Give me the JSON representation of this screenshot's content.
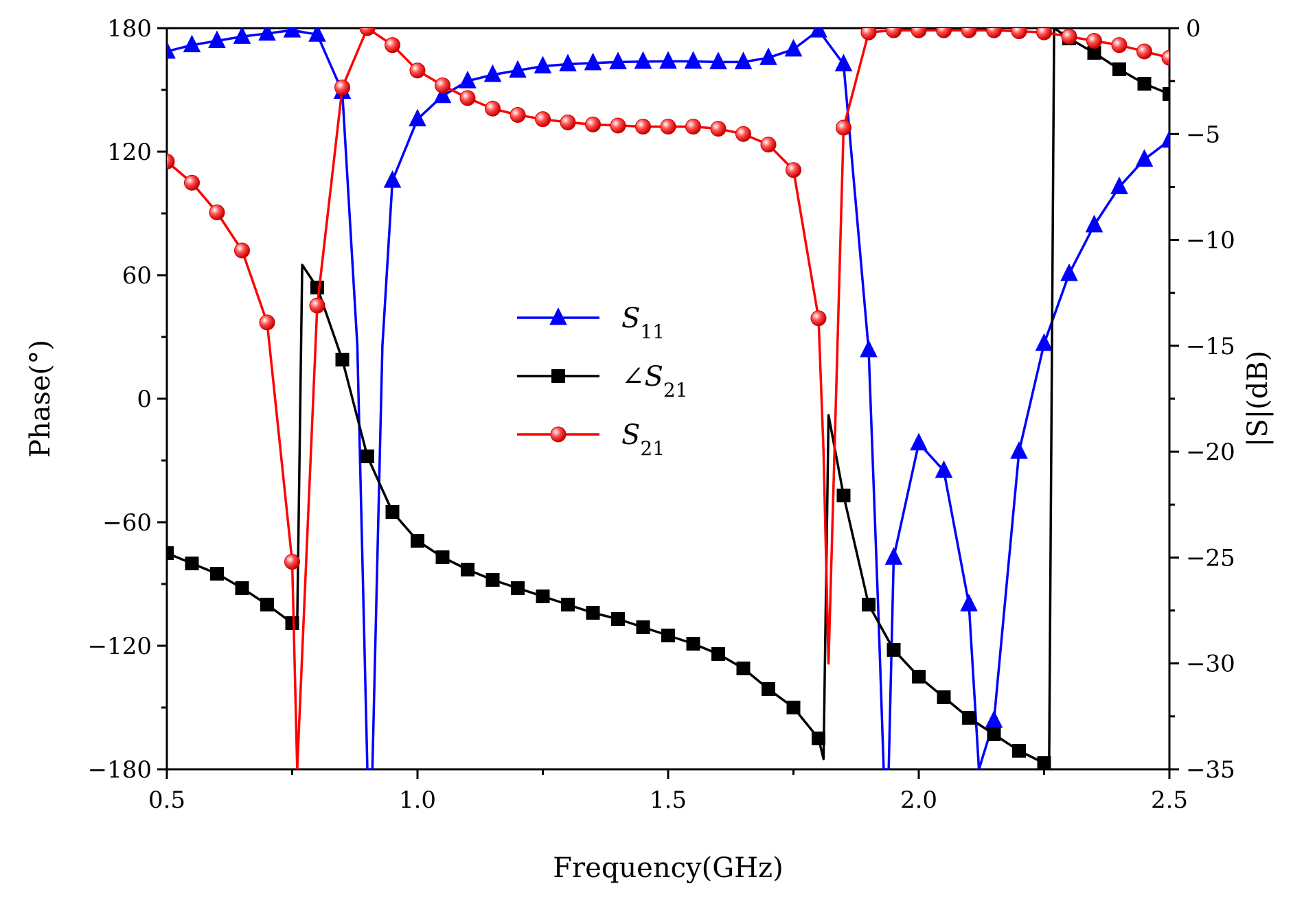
{
  "chart_data": {
    "type": "line",
    "xlabel": "Frequency(GHz)",
    "ylabel_left": "Phase(°)",
    "ylabel_right": "|S|(dB)",
    "xlim": [
      0.5,
      2.5
    ],
    "ylim_left": [
      -180,
      180
    ],
    "ylim_right": [
      -35,
      0
    ],
    "x_ticks": [
      "0.5",
      "1.0",
      "1.5",
      "2.0",
      "2.5"
    ],
    "y_left_ticks": [
      "180",
      "120",
      "60",
      "0",
      "-60",
      "-120",
      "-180"
    ],
    "y_right_ticks": [
      "0",
      "-5",
      "-10",
      "-15",
      "-20",
      "-25",
      "-30",
      "-35"
    ],
    "grid": false,
    "legend_position": "center",
    "series": [
      {
        "name": "S11",
        "axis": "right",
        "color": "#0000ff",
        "marker": "triangle",
        "x": [
          0.5,
          0.55,
          0.6,
          0.65,
          0.7,
          0.75,
          0.8,
          0.85,
          0.88,
          0.9,
          0.905,
          0.91,
          0.93,
          0.95,
          1.0,
          1.05,
          1.1,
          1.15,
          1.2,
          1.25,
          1.3,
          1.35,
          1.4,
          1.45,
          1.5,
          1.55,
          1.6,
          1.65,
          1.7,
          1.75,
          1.8,
          1.85,
          1.9,
          1.92,
          1.93,
          1.94,
          1.95,
          2.0,
          2.05,
          2.1,
          2.12,
          2.15,
          2.2,
          2.25,
          2.3,
          2.35,
          2.4,
          2.45,
          2.5
        ],
        "y": [
          -1.1,
          -0.8,
          -0.6,
          -0.4,
          -0.25,
          -0.1,
          -0.3,
          -3.0,
          -15,
          -35,
          -35,
          -35,
          -15,
          -7.2,
          -4.3,
          -3.2,
          -2.5,
          -2.2,
          -2.0,
          -1.8,
          -1.7,
          -1.65,
          -1.6,
          -1.58,
          -1.57,
          -1.57,
          -1.6,
          -1.6,
          -1.4,
          -1.0,
          -0.1,
          -1.7,
          -15.2,
          -28,
          -35,
          -35,
          -25,
          -19.6,
          -20.9,
          -27.2,
          -35,
          -32.7,
          -20,
          -14.9,
          -11.6,
          -9.3,
          -7.5,
          -6.2,
          -5.3
        ]
      },
      {
        "name": "∠S21",
        "axis": "left",
        "color": "#000000",
        "marker": "square",
        "x": [
          0.5,
          0.55,
          0.6,
          0.65,
          0.7,
          0.75,
          0.76,
          0.77,
          0.8,
          0.85,
          0.9,
          0.95,
          1.0,
          1.05,
          1.1,
          1.15,
          1.2,
          1.25,
          1.3,
          1.35,
          1.4,
          1.45,
          1.5,
          1.55,
          1.6,
          1.65,
          1.7,
          1.75,
          1.8,
          1.81,
          1.82,
          1.85,
          1.9,
          1.95,
          2.0,
          2.05,
          2.1,
          2.15,
          2.2,
          2.25,
          2.26,
          2.27,
          2.3,
          2.35,
          2.4,
          2.45,
          2.5
        ],
        "y": [
          -75,
          -80,
          -85,
          -92,
          -100,
          -109,
          -110,
          65,
          54,
          19,
          -28,
          -55,
          -69,
          -77,
          -83,
          -88,
          -92,
          -96,
          -100,
          -104,
          -107,
          -111,
          -115,
          -119,
          -124,
          -131,
          -141,
          -150,
          -165,
          -175,
          -8,
          -47,
          -100,
          -122,
          -135,
          -145,
          -155,
          -163,
          -171,
          -177,
          -180,
          180,
          175,
          168,
          160,
          153,
          148
        ]
      },
      {
        "name": "S21",
        "axis": "right",
        "color": "#ff0000",
        "marker": "circle",
        "x": [
          0.5,
          0.55,
          0.6,
          0.65,
          0.7,
          0.75,
          0.76,
          0.8,
          0.85,
          0.9,
          0.95,
          1.0,
          1.05,
          1.1,
          1.15,
          1.2,
          1.25,
          1.3,
          1.35,
          1.4,
          1.45,
          1.5,
          1.55,
          1.6,
          1.65,
          1.7,
          1.75,
          1.8,
          1.81,
          1.82,
          1.85,
          1.9,
          1.95,
          2.0,
          2.05,
          2.1,
          2.15,
          2.2,
          2.25,
          2.3,
          2.35,
          2.4,
          2.45,
          2.5
        ],
        "y": [
          -6.3,
          -7.3,
          -8.7,
          -10.5,
          -13.9,
          -25.2,
          -35,
          -13.1,
          -2.8,
          0,
          -0.8,
          -2.0,
          -2.7,
          -3.3,
          -3.8,
          -4.1,
          -4.3,
          -4.45,
          -4.55,
          -4.6,
          -4.65,
          -4.65,
          -4.65,
          -4.75,
          -5.0,
          -5.5,
          -6.7,
          -13.7,
          -20,
          -30,
          -4.7,
          -0.2,
          -0.1,
          -0.1,
          -0.1,
          -0.1,
          -0.1,
          -0.15,
          -0.2,
          -0.4,
          -0.6,
          -0.8,
          -1.1,
          -1.4
        ]
      }
    ]
  }
}
